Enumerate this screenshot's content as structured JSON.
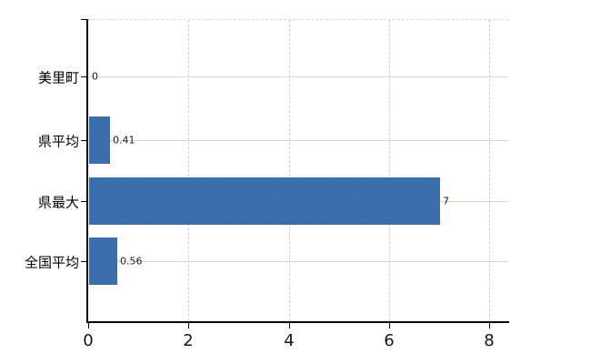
{
  "chart_data": {
    "type": "bar",
    "orientation": "horizontal",
    "categories": [
      "美里町",
      "県平均",
      "県最大",
      "全国平均"
    ],
    "values": [
      0,
      0.41,
      7,
      0.56
    ],
    "value_labels": [
      "0",
      "0.41",
      "7",
      "0.56"
    ],
    "x_ticks": [
      "0",
      "2",
      "4",
      "6",
      "8"
    ],
    "x_tick_values": [
      0,
      2,
      4,
      6,
      8
    ],
    "xlim": [
      0,
      8.4
    ],
    "title": "",
    "xlabel": "",
    "ylabel": "",
    "grid": "on",
    "legend": "none",
    "bar_color": "#3e6fae",
    "bar_color_light": "#4a7cbd",
    "bar_color_dark": "#2f619f",
    "grid_color": "#d5d7d0",
    "axis_color": "#000000"
  }
}
